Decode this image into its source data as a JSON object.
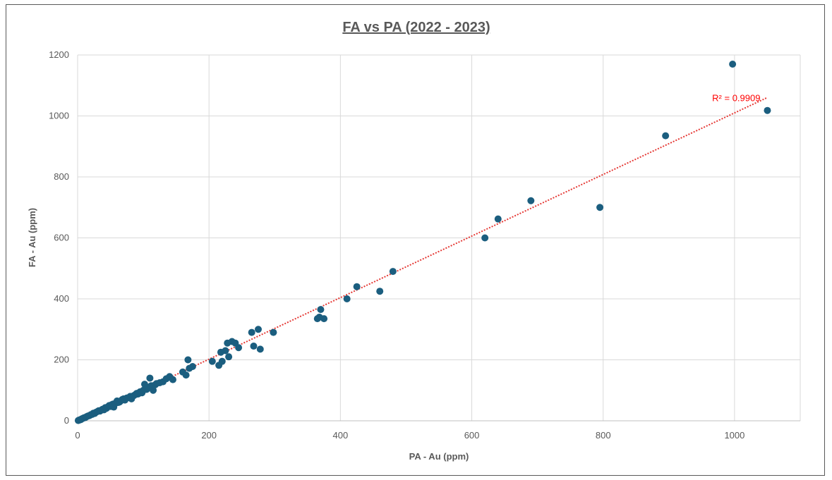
{
  "chart_data": {
    "type": "scatter",
    "title": "FA vs PA (2022 - 2023)",
    "xlabel": "PA - Au (ppm)",
    "ylabel": "FA - Au (ppm)",
    "xlim": [
      0,
      1100
    ],
    "ylim": [
      0,
      1200
    ],
    "xticks": [
      "0",
      "200",
      "400",
      "600",
      "800",
      "1000"
    ],
    "yticks": [
      "0",
      "200",
      "400",
      "600",
      "800",
      "1000",
      "1200"
    ],
    "grid": true,
    "colors": {
      "points": "#1b5e7f",
      "trendline": "#e53935",
      "grid": "#d9d9d9"
    },
    "trendline": {
      "slope": 1.01,
      "intercept": 0,
      "x_end": 1050,
      "label": "R² = 0.9909"
    },
    "series": [
      {
        "points": [
          [
            1,
            1
          ],
          [
            2,
            2
          ],
          [
            3,
            3
          ],
          [
            5,
            4
          ],
          [
            6,
            6
          ],
          [
            8,
            8
          ],
          [
            10,
            10
          ],
          [
            12,
            11
          ],
          [
            14,
            14
          ],
          [
            16,
            16
          ],
          [
            18,
            17
          ],
          [
            20,
            20
          ],
          [
            22,
            21
          ],
          [
            24,
            25
          ],
          [
            26,
            24
          ],
          [
            28,
            28
          ],
          [
            30,
            30
          ],
          [
            32,
            33
          ],
          [
            34,
            32
          ],
          [
            36,
            35
          ],
          [
            38,
            38
          ],
          [
            40,
            36
          ],
          [
            42,
            43
          ],
          [
            44,
            41
          ],
          [
            46,
            46
          ],
          [
            48,
            50
          ],
          [
            50,
            47
          ],
          [
            52,
            53
          ],
          [
            54,
            55
          ],
          [
            55,
            45
          ],
          [
            58,
            58
          ],
          [
            60,
            65
          ],
          [
            62,
            60
          ],
          [
            64,
            62
          ],
          [
            66,
            66
          ],
          [
            68,
            70
          ],
          [
            70,
            72
          ],
          [
            72,
            68
          ],
          [
            75,
            75
          ],
          [
            78,
            76
          ],
          [
            80,
            80
          ],
          [
            82,
            72
          ],
          [
            85,
            82
          ],
          [
            88,
            86
          ],
          [
            90,
            90
          ],
          [
            92,
            88
          ],
          [
            95,
            95
          ],
          [
            98,
            92
          ],
          [
            100,
            100
          ],
          [
            102,
            120
          ],
          [
            105,
            103
          ],
          [
            108,
            110
          ],
          [
            110,
            140
          ],
          [
            112,
            115
          ],
          [
            115,
            100
          ],
          [
            118,
            118
          ],
          [
            120,
            122
          ],
          [
            125,
            125
          ],
          [
            130,
            128
          ],
          [
            135,
            138
          ],
          [
            140,
            145
          ],
          [
            145,
            135
          ],
          [
            160,
            160
          ],
          [
            165,
            150
          ],
          [
            168,
            200
          ],
          [
            170,
            172
          ],
          [
            175,
            178
          ],
          [
            205,
            195
          ],
          [
            215,
            182
          ],
          [
            218,
            225
          ],
          [
            220,
            195
          ],
          [
            225,
            230
          ],
          [
            228,
            255
          ],
          [
            230,
            210
          ],
          [
            235,
            260
          ],
          [
            240,
            255
          ],
          [
            245,
            240
          ],
          [
            265,
            290
          ],
          [
            268,
            245
          ],
          [
            275,
            300
          ],
          [
            278,
            235
          ],
          [
            298,
            290
          ],
          [
            365,
            335
          ],
          [
            368,
            340
          ],
          [
            370,
            365
          ],
          [
            375,
            335
          ],
          [
            410,
            400
          ],
          [
            425,
            440
          ],
          [
            460,
            425
          ],
          [
            480,
            490
          ],
          [
            620,
            600
          ],
          [
            640,
            662
          ],
          [
            690,
            722
          ],
          [
            795,
            700
          ],
          [
            895,
            935
          ],
          [
            997,
            1170
          ],
          [
            1050,
            1018
          ]
        ]
      }
    ]
  }
}
